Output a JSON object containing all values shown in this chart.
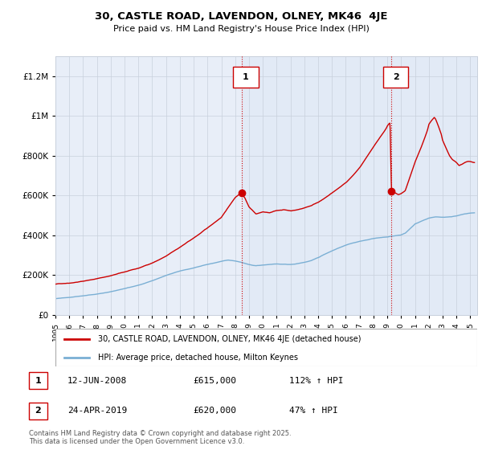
{
  "title": "30, CASTLE ROAD, LAVENDON, OLNEY, MK46  4JE",
  "subtitle": "Price paid vs. HM Land Registry's House Price Index (HPI)",
  "ylabel_ticks": [
    0,
    200000,
    400000,
    600000,
    800000,
    1000000,
    1200000
  ],
  "ylim": [
    0,
    1300000
  ],
  "xlim_start": 1995.0,
  "xlim_end": 2025.5,
  "sale1_x": 2008.45,
  "sale1_y": 615000,
  "sale1_label": "1",
  "sale1_date": "12-JUN-2008",
  "sale1_price": "£615,000",
  "sale1_hpi": "112% ↑ HPI",
  "sale2_x": 2019.3,
  "sale2_y": 620000,
  "sale2_label": "2",
  "sale2_date": "24-APR-2019",
  "sale2_price": "£620,000",
  "sale2_hpi": "47% ↑ HPI",
  "red_color": "#cc0000",
  "blue_color": "#7aafd4",
  "bg_color": "#e8eef8",
  "shade_color": "#dde8f5",
  "grid_color": "#c8d0dc",
  "legend1": "30, CASTLE ROAD, LAVENDON, OLNEY, MK46 4JE (detached house)",
  "legend2": "HPI: Average price, detached house, Milton Keynes",
  "footnote": "Contains HM Land Registry data © Crown copyright and database right 2025.\nThis data is licensed under the Open Government Licence v3.0.",
  "x_ticks": [
    1995,
    1996,
    1997,
    1998,
    1999,
    2000,
    2001,
    2002,
    2003,
    2004,
    2005,
    2006,
    2007,
    2008,
    2009,
    2010,
    2011,
    2012,
    2013,
    2014,
    2015,
    2016,
    2017,
    2018,
    2019,
    2020,
    2021,
    2022,
    2023,
    2024,
    2025
  ]
}
